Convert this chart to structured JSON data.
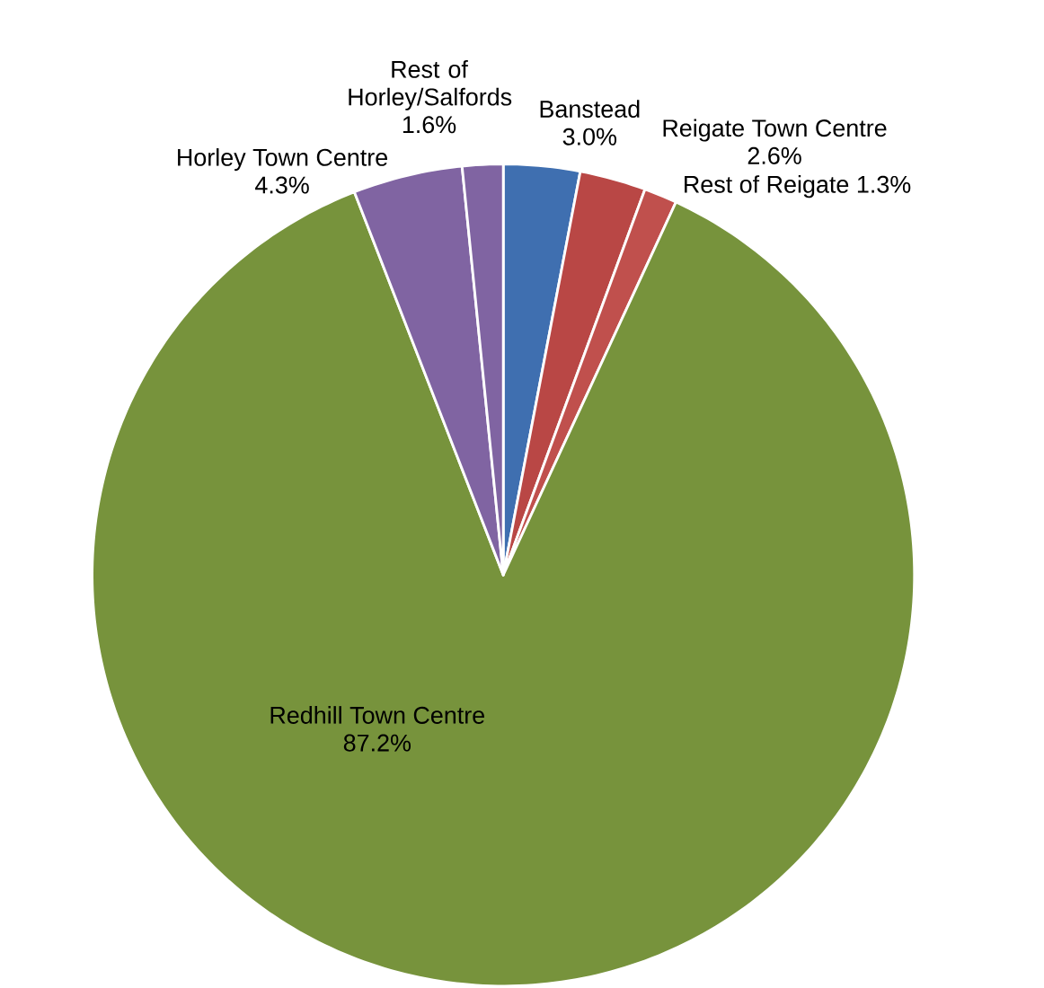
{
  "chart_data": {
    "type": "pie",
    "categories": [
      "Banstead",
      "Reigate Town Centre",
      "Rest of Reigate",
      "Redhill Town Centre",
      "Horley Town Centre",
      "Rest of Horley/Salfords"
    ],
    "values": [
      3.0,
      2.6,
      1.3,
      87.2,
      4.3,
      1.6
    ],
    "value_labels": [
      "3.0%",
      "2.6%",
      "1.3%",
      "87.2%",
      "4.3%",
      "1.6%"
    ],
    "colors": [
      "#3f6fb0",
      "#b94745",
      "#c0504d",
      "#77933c",
      "#8064a2",
      "#8064a2"
    ]
  }
}
